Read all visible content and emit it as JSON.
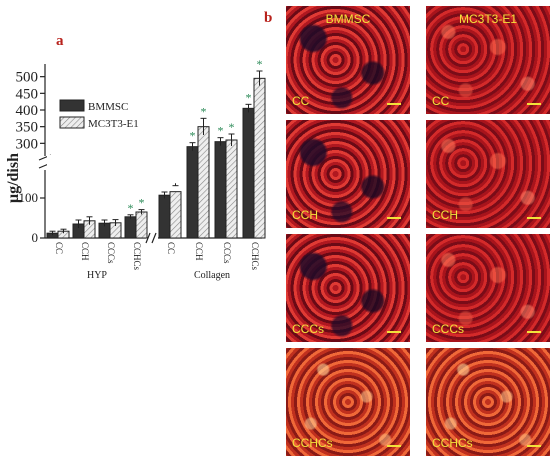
{
  "panel_letters": {
    "a": "a",
    "b": "b"
  },
  "chart_data": {
    "type": "bar",
    "ylabel": "μg/dish",
    "y_ticks_lower": [
      "0",
      "100"
    ],
    "y_ticks_upper": [
      "300",
      "350",
      "400",
      "450",
      "500"
    ],
    "ylim_lower": [
      0,
      150
    ],
    "ylim_upper": [
      280,
      520
    ],
    "groups": [
      {
        "label": "HYP",
        "categories": [
          "CC",
          "CCH",
          "CCCs",
          "CCHCs"
        ]
      },
      {
        "label": "Collagen",
        "categories": [
          "CC",
          "CCH",
          "CCCs",
          "CCHCs"
        ]
      }
    ],
    "series": [
      {
        "name": "BMMSC",
        "values": [
          12,
          35,
          37,
          53,
          107,
          290,
          305,
          405
        ],
        "errors": [
          5,
          10,
          8,
          5,
          8,
          12,
          12,
          12
        ],
        "significance": [
          "",
          "",
          "",
          "*",
          "",
          "*",
          "*",
          "*"
        ]
      },
      {
        "name": "MC3T3-E1",
        "values": [
          17,
          43,
          38,
          65,
          155,
          350,
          310,
          495
        ],
        "errors": [
          5,
          10,
          8,
          6,
          18,
          25,
          18,
          22
        ],
        "significance": [
          "",
          "",
          "",
          "*",
          "",
          "*",
          "*",
          "*"
        ]
      }
    ],
    "colors": {
      "BMMSC": "#333333",
      "MC3T3-E1": "#eeeeee",
      "significance_star": "#2b8a57"
    }
  },
  "micrographs": {
    "columns": [
      "BMMSC",
      "MC3T3-E1"
    ],
    "rows": [
      "CC",
      "CCH",
      "CCCs",
      "CCHCs"
    ]
  }
}
